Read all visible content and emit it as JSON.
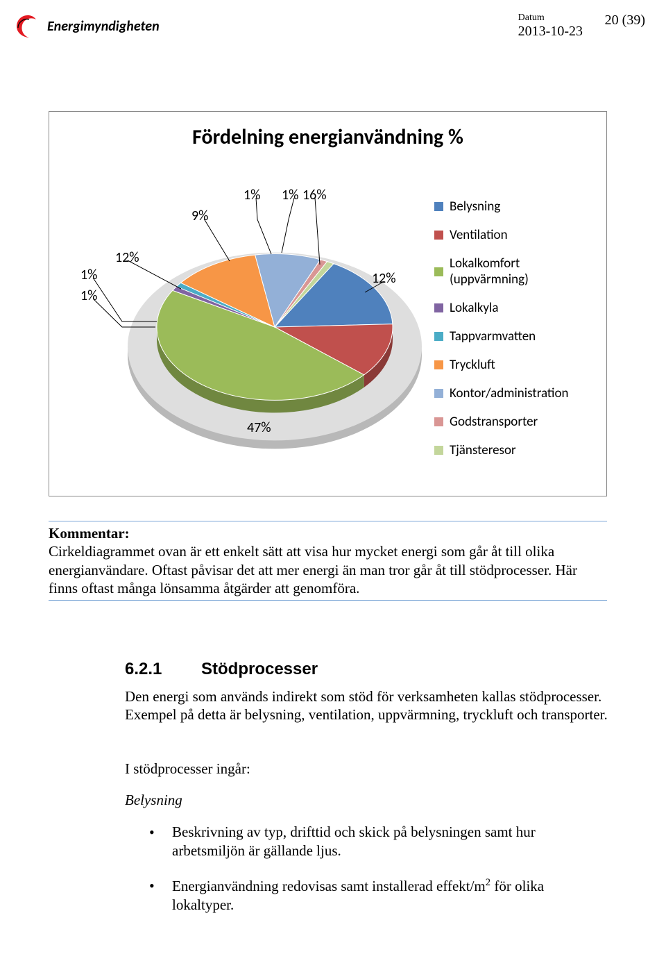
{
  "header": {
    "logo_text": "Energimyndigheten",
    "logo_color": "#e31b23",
    "datum_label": "Datum",
    "datum_value": "2013-10-23",
    "page_num": "20 (39)"
  },
  "chart": {
    "type": "pie",
    "title": "Fördelning energianvändning %",
    "title_fontsize": 30,
    "background_color": "#ffffff",
    "border_color": "#888888",
    "slices": [
      {
        "label": "Belysning",
        "value": 16,
        "color": "#4f81bd",
        "callout": "16%"
      },
      {
        "label": "Ventilation",
        "value": 12,
        "color": "#c0504d",
        "callout": "12%"
      },
      {
        "label": "Lokalkomfort (uppvärmning)",
        "value": 47,
        "color": "#9bbb59",
        "callout": "47%"
      },
      {
        "label": "Lokalkyla",
        "value": 1,
        "color": "#8064a2",
        "callout": "1%"
      },
      {
        "label": "Tappvarmvatten",
        "value": 1,
        "color": "#4bacc6",
        "callout": "1%"
      },
      {
        "label": "Tryckluft",
        "value": 12,
        "color": "#f79646",
        "callout": "12%"
      },
      {
        "label": "Kontor/administration",
        "value": 9,
        "color": "#93b0d7",
        "callout": "9%"
      },
      {
        "label": "Godstransporter",
        "value": 1,
        "color": "#d99694",
        "callout": "1%"
      },
      {
        "label": "Tjänsteresor",
        "value": 1,
        "color": "#c3d69b",
        "callout": "1%"
      }
    ],
    "platform_top_color": "#dedede",
    "platform_side_color": "#b8b8b8",
    "radius": 170,
    "depth": 18,
    "vsquash": 0.62,
    "start_angle_deg": -60,
    "legend_fontsize": 19,
    "callout_fontsize": 20,
    "leader_color": "#000000"
  },
  "comment": {
    "title": "Kommentar:",
    "body": "Cirkeldiagrammet ovan är ett enkelt sätt att visa hur mycket energi som går åt till olika energianvändare. Oftast påvisar det att mer energi än man tror går åt till stödprocesser. Här finns oftast många lönsamma åtgärder att genomföra.",
    "border_color": "#7aa5d6"
  },
  "section": {
    "num": "6.2.1",
    "title": "Stödprocesser",
    "p1": "Den energi som används indirekt som stöd för verksamheten kallas stödprocesser. Exempel på detta är belysning, ventilation, uppvärmning, tryckluft och transporter.",
    "p2": "I stödprocesser ingår:",
    "subhead": "Belysning",
    "bullets": [
      "Beskrivning av typ, drifttid och skick på belysningen samt hur arbetsmiljön är gällande ljus.",
      "Energianvändning redovisas samt installerad effekt/m² för olika lokaltyper."
    ]
  }
}
